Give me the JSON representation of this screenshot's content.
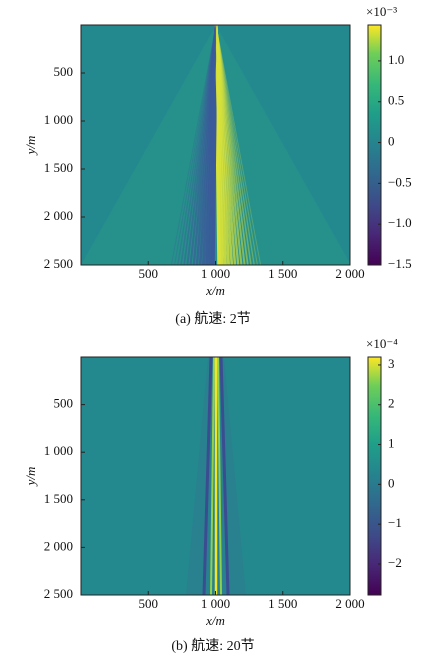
{
  "chart_data": [
    {
      "type": "heatmap",
      "caption": "(a) 航速: 2节",
      "xlabel": "x/m",
      "ylabel": "y/m",
      "xlim": [
        0,
        2000
      ],
      "xticks": [
        500,
        {
          "value": 1000,
          "label": "1 000"
        },
        {
          "value": 1500,
          "label": "1 500"
        },
        {
          "value": 2000,
          "label": "2 000"
        }
      ],
      "ylim": [
        0,
        2500
      ],
      "invert_y": true,
      "yticks": [
        500,
        {
          "value": 1000,
          "label": "1 000"
        },
        {
          "value": 1500,
          "label": "1 500"
        },
        {
          "value": 2000,
          "label": "2 000"
        },
        {
          "value": 2500,
          "label": "2 500"
        }
      ],
      "colormap": "viridis",
      "clim": [
        -1.5,
        1.44
      ],
      "colorbar_scale": "×10⁻³",
      "cticks": [
        {
          "value": 1.0,
          "label": "1.0"
        },
        0.5,
        0,
        {
          "value": -0.5,
          "label": "−0.5"
        },
        {
          "value": -1.0,
          "label": "−1.0"
        },
        {
          "value": -1.5,
          "label": "−1.5"
        }
      ]
    },
    {
      "type": "heatmap",
      "caption": "(b) 航速: 20节",
      "xlabel": "x/m",
      "ylabel": "y/m",
      "xlim": [
        0,
        2000
      ],
      "xticks": [
        500,
        {
          "value": 1000,
          "label": "1 000"
        },
        {
          "value": 1500,
          "label": "1 500"
        },
        {
          "value": 2000,
          "label": "2 000"
        }
      ],
      "ylim": [
        0,
        2500
      ],
      "invert_y": true,
      "yticks": [
        500,
        {
          "value": 1000,
          "label": "1 000"
        },
        {
          "value": 1500,
          "label": "1 500"
        },
        {
          "value": 2000,
          "label": "2 000"
        },
        {
          "value": 2500,
          "label": "2 500"
        }
      ],
      "colormap": "viridis",
      "clim": [
        -2.78,
        3.2
      ],
      "colorbar_scale": "×10⁻⁴",
      "cticks": [
        3,
        2,
        1,
        0,
        {
          "value": -1,
          "label": "−1"
        },
        {
          "value": -2,
          "label": "−2"
        }
      ]
    }
  ]
}
